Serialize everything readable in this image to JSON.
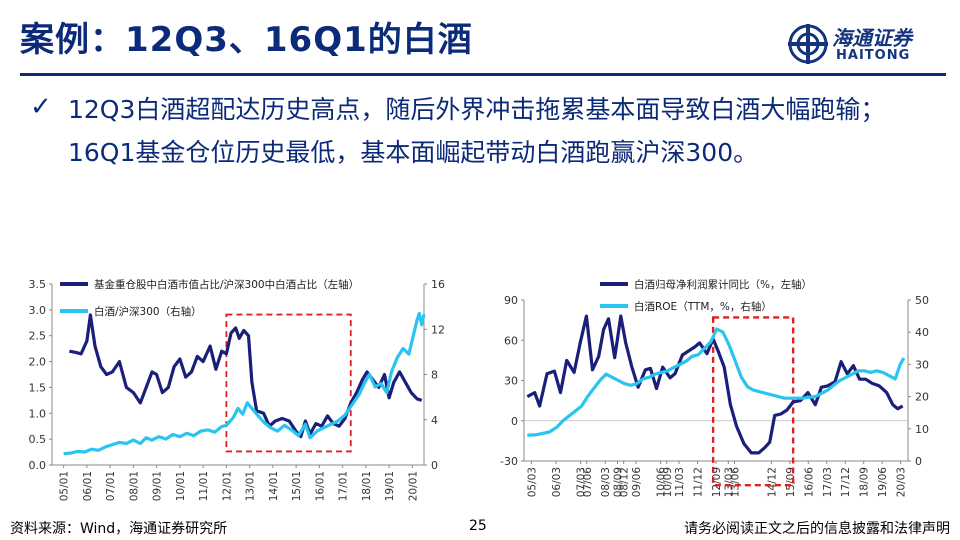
{
  "header": {
    "title": "案例：12Q3、16Q1的白酒",
    "logo_cn": "海通证券",
    "logo_en": "HAITONG"
  },
  "bullet": {
    "text": "12Q3白酒超配达历史高点，随后外界冲击拖累基本面导致白酒大幅跑输；16Q1基金仓位历史最低，基本面崛起带动白酒跑赢沪深300。"
  },
  "footer": {
    "source": "资料来源：Wind，海通证券研究所",
    "page": "25",
    "disclaimer": "请务必阅读正文之后的信息披露和法律声明"
  },
  "colors": {
    "brand": "#0c2a7a",
    "navy": "#1a1f7a",
    "cyan": "#29c4f0",
    "highlight": "#e02020"
  },
  "chart_data": [
    {
      "type": "line",
      "x_ticks": [
        "05/01",
        "06/01",
        "07/01",
        "08/01",
        "09/01",
        "10/01",
        "11/01",
        "12/01",
        "13/01",
        "14/01",
        "15/01",
        "16/01",
        "17/01",
        "18/01",
        "19/01",
        "20/01"
      ],
      "ylim_left": [
        0,
        3.5
      ],
      "yticks_left": [
        "0.0",
        "0.5",
        "1.0",
        "1.5",
        "2.0",
        "2.5",
        "3.0",
        "3.5"
      ],
      "ylim_right": [
        0,
        16
      ],
      "yticks_right": [
        "0",
        "4",
        "8",
        "12",
        "16"
      ],
      "highlight": {
        "x": [
          2012.0,
          2017.35
        ],
        "y_right": [
          1.2,
          13.3
        ]
      },
      "series": [
        {
          "name": "基金重仓股中白酒市值占比/沪深300中白酒占比（左轴）",
          "axis": "left",
          "color": "#1a1f7a",
          "points": [
            [
              2005.25,
              2.2
            ],
            [
              2005.5,
              2.18
            ],
            [
              2005.75,
              2.15
            ],
            [
              2006.0,
              2.4
            ],
            [
              2006.15,
              2.9
            ],
            [
              2006.35,
              2.3
            ],
            [
              2006.6,
              1.9
            ],
            [
              2006.85,
              1.75
            ],
            [
              2007.1,
              1.8
            ],
            [
              2007.4,
              2.0
            ],
            [
              2007.7,
              1.5
            ],
            [
              2008.0,
              1.4
            ],
            [
              2008.3,
              1.2
            ],
            [
              2008.55,
              1.5
            ],
            [
              2008.8,
              1.8
            ],
            [
              2009.0,
              1.75
            ],
            [
              2009.25,
              1.4
            ],
            [
              2009.5,
              1.5
            ],
            [
              2009.75,
              1.9
            ],
            [
              2010.0,
              2.05
            ],
            [
              2010.25,
              1.7
            ],
            [
              2010.5,
              1.8
            ],
            [
              2010.75,
              2.1
            ],
            [
              2011.0,
              2.0
            ],
            [
              2011.3,
              2.3
            ],
            [
              2011.55,
              1.85
            ],
            [
              2011.8,
              2.2
            ],
            [
              2012.0,
              2.15
            ],
            [
              2012.2,
              2.55
            ],
            [
              2012.4,
              2.65
            ],
            [
              2012.55,
              2.45
            ],
            [
              2012.75,
              2.6
            ],
            [
              2012.95,
              2.5
            ],
            [
              2013.1,
              1.6
            ],
            [
              2013.3,
              1.05
            ],
            [
              2013.6,
              1.0
            ],
            [
              2013.85,
              0.75
            ],
            [
              2014.1,
              0.85
            ],
            [
              2014.4,
              0.9
            ],
            [
              2014.7,
              0.85
            ],
            [
              2015.0,
              0.65
            ],
            [
              2015.2,
              0.55
            ],
            [
              2015.4,
              0.85
            ],
            [
              2015.6,
              0.6
            ],
            [
              2015.85,
              0.8
            ],
            [
              2016.1,
              0.75
            ],
            [
              2016.35,
              0.95
            ],
            [
              2016.6,
              0.8
            ],
            [
              2016.85,
              0.75
            ],
            [
              2017.1,
              0.9
            ],
            [
              2017.35,
              1.2
            ],
            [
              2017.6,
              1.4
            ],
            [
              2017.85,
              1.65
            ],
            [
              2018.05,
              1.8
            ],
            [
              2018.3,
              1.65
            ],
            [
              2018.55,
              1.5
            ],
            [
              2018.8,
              1.75
            ],
            [
              2019.0,
              1.3
            ],
            [
              2019.2,
              1.6
            ],
            [
              2019.45,
              1.8
            ],
            [
              2019.7,
              1.6
            ],
            [
              2019.95,
              1.4
            ],
            [
              2020.2,
              1.28
            ],
            [
              2020.4,
              1.25
            ]
          ]
        },
        {
          "name": "白酒/沪深300（右轴）",
          "axis": "right",
          "color": "#29c4f0",
          "points": [
            [
              2005.0,
              1.0
            ],
            [
              2005.3,
              1.05
            ],
            [
              2005.6,
              1.2
            ],
            [
              2005.9,
              1.15
            ],
            [
              2006.2,
              1.4
            ],
            [
              2006.5,
              1.3
            ],
            [
              2006.8,
              1.6
            ],
            [
              2007.1,
              1.8
            ],
            [
              2007.4,
              2.0
            ],
            [
              2007.7,
              1.9
            ],
            [
              2008.0,
              2.2
            ],
            [
              2008.3,
              1.9
            ],
            [
              2008.55,
              2.4
            ],
            [
              2008.8,
              2.2
            ],
            [
              2009.1,
              2.5
            ],
            [
              2009.4,
              2.3
            ],
            [
              2009.7,
              2.7
            ],
            [
              2010.0,
              2.5
            ],
            [
              2010.3,
              2.8
            ],
            [
              2010.6,
              2.6
            ],
            [
              2010.9,
              3.0
            ],
            [
              2011.2,
              3.1
            ],
            [
              2011.5,
              2.9
            ],
            [
              2011.8,
              3.4
            ],
            [
              2012.0,
              3.5
            ],
            [
              2012.3,
              4.2
            ],
            [
              2012.5,
              5.0
            ],
            [
              2012.7,
              4.5
            ],
            [
              2012.9,
              5.5
            ],
            [
              2013.1,
              5.0
            ],
            [
              2013.3,
              4.5
            ],
            [
              2013.6,
              3.8
            ],
            [
              2013.9,
              3.3
            ],
            [
              2014.2,
              3.0
            ],
            [
              2014.5,
              3.5
            ],
            [
              2014.8,
              3.1
            ],
            [
              2015.1,
              2.6
            ],
            [
              2015.4,
              3.6
            ],
            [
              2015.6,
              2.4
            ],
            [
              2015.9,
              3.0
            ],
            [
              2016.2,
              3.3
            ],
            [
              2016.5,
              3.6
            ],
            [
              2016.8,
              3.9
            ],
            [
              2017.1,
              4.4
            ],
            [
              2017.4,
              5.3
            ],
            [
              2017.7,
              6.2
            ],
            [
              2017.95,
              7.3
            ],
            [
              2018.15,
              8.0
            ],
            [
              2018.4,
              6.9
            ],
            [
              2018.65,
              7.2
            ],
            [
              2018.9,
              6.4
            ],
            [
              2019.1,
              8.2
            ],
            [
              2019.35,
              9.5
            ],
            [
              2019.6,
              10.3
            ],
            [
              2019.85,
              9.8
            ],
            [
              2020.05,
              11.5
            ],
            [
              2020.2,
              12.8
            ],
            [
              2020.3,
              13.4
            ],
            [
              2020.4,
              12.4
            ],
            [
              2020.5,
              13.3
            ]
          ]
        }
      ]
    },
    {
      "type": "line",
      "x_ticks": [
        "05/03",
        "06/03",
        "07/03",
        "07/06",
        "08/09",
        "08/03",
        "08/12",
        "09/06",
        "10/06",
        "10/09",
        "11/03",
        "11/12",
        "12/09",
        "13/03",
        "13/06",
        "14/12",
        "15/09",
        "16/06",
        "17/03",
        "17/12",
        "18/09",
        "19/06",
        "20/03"
      ],
      "ylim_left": [
        -30,
        90
      ],
      "yticks_left": [
        "-30",
        "0",
        "30",
        "60",
        "90"
      ],
      "ylim_right": [
        0,
        50
      ],
      "yticks_right": [
        "0",
        "10",
        "20",
        "30",
        "40",
        "50"
      ],
      "highlight": {
        "x": [
          2012.55,
          2015.8
        ],
        "y_left": [
          -48,
          77
        ]
      },
      "series": [
        {
          "name": "白酒归母净利润累计同比（%，左轴）",
          "axis": "left",
          "color": "#1a1f7a",
          "points": [
            [
              2005.0,
              18
            ],
            [
              2005.3,
              21
            ],
            [
              2005.5,
              11
            ],
            [
              2005.8,
              35
            ],
            [
              2006.1,
              37
            ],
            [
              2006.35,
              21
            ],
            [
              2006.6,
              45
            ],
            [
              2006.9,
              36
            ],
            [
              2007.15,
              58
            ],
            [
              2007.4,
              78
            ],
            [
              2007.65,
              38
            ],
            [
              2007.9,
              48
            ],
            [
              2008.1,
              68
            ],
            [
              2008.3,
              76
            ],
            [
              2008.55,
              47
            ],
            [
              2008.8,
              78
            ],
            [
              2009.0,
              58
            ],
            [
              2009.25,
              40
            ],
            [
              2009.5,
              25
            ],
            [
              2009.8,
              38
            ],
            [
              2010.0,
              39
            ],
            [
              2010.25,
              24
            ],
            [
              2010.5,
              40
            ],
            [
              2010.8,
              32
            ],
            [
              2011.0,
              35
            ],
            [
              2011.3,
              49
            ],
            [
              2011.55,
              52
            ],
            [
              2011.8,
              55
            ],
            [
              2012.0,
              58
            ],
            [
              2012.3,
              50
            ],
            [
              2012.55,
              61
            ],
            [
              2012.75,
              52
            ],
            [
              2013.0,
              40
            ],
            [
              2013.25,
              12
            ],
            [
              2013.5,
              -4
            ],
            [
              2013.8,
              -17
            ],
            [
              2014.1,
              -24
            ],
            [
              2014.4,
              -24
            ],
            [
              2014.65,
              -20
            ],
            [
              2014.85,
              -16
            ],
            [
              2015.05,
              4
            ],
            [
              2015.3,
              5
            ],
            [
              2015.55,
              8
            ],
            [
              2015.8,
              14
            ],
            [
              2016.1,
              15
            ],
            [
              2016.4,
              21
            ],
            [
              2016.7,
              12
            ],
            [
              2016.95,
              25
            ],
            [
              2017.2,
              26
            ],
            [
              2017.5,
              29
            ],
            [
              2017.75,
              44
            ],
            [
              2018.0,
              35
            ],
            [
              2018.25,
              41
            ],
            [
              2018.5,
              31
            ],
            [
              2018.75,
              31
            ],
            [
              2019.0,
              28
            ],
            [
              2019.3,
              26
            ],
            [
              2019.6,
              21
            ],
            [
              2019.85,
              12
            ],
            [
              2020.05,
              9
            ],
            [
              2020.25,
              11
            ]
          ]
        },
        {
          "name": "白酒ROE（TTM，%，右轴）",
          "axis": "right",
          "color": "#29c4f0",
          "points": [
            [
              2005.0,
              8
            ],
            [
              2005.3,
              8.1
            ],
            [
              2005.6,
              8.5
            ],
            [
              2005.9,
              9
            ],
            [
              2006.2,
              10.5
            ],
            [
              2006.45,
              12.5
            ],
            [
              2006.7,
              14
            ],
            [
              2006.95,
              15.5
            ],
            [
              2007.2,
              17
            ],
            [
              2007.45,
              20
            ],
            [
              2007.7,
              22.5
            ],
            [
              2007.95,
              25
            ],
            [
              2008.2,
              27
            ],
            [
              2008.45,
              26
            ],
            [
              2008.7,
              25
            ],
            [
              2008.95,
              24
            ],
            [
              2009.2,
              23.5
            ],
            [
              2009.45,
              24
            ],
            [
              2009.7,
              25.5
            ],
            [
              2009.95,
              26
            ],
            [
              2010.2,
              27
            ],
            [
              2010.45,
              27.5
            ],
            [
              2010.7,
              28
            ],
            [
              2010.95,
              29
            ],
            [
              2011.2,
              30
            ],
            [
              2011.45,
              31
            ],
            [
              2011.7,
              32.5
            ],
            [
              2011.95,
              33
            ],
            [
              2012.2,
              35
            ],
            [
              2012.45,
              37
            ],
            [
              2012.7,
              41
            ],
            [
              2012.95,
              40
            ],
            [
              2013.2,
              36
            ],
            [
              2013.45,
              31
            ],
            [
              2013.7,
              26
            ],
            [
              2013.95,
              23
            ],
            [
              2014.2,
              22
            ],
            [
              2014.45,
              21.5
            ],
            [
              2014.7,
              21
            ],
            [
              2014.95,
              20.5
            ],
            [
              2015.2,
              20
            ],
            [
              2015.45,
              19.5
            ],
            [
              2015.7,
              19.5
            ],
            [
              2015.95,
              19.5
            ],
            [
              2016.2,
              19.5
            ],
            [
              2016.45,
              19.8
            ],
            [
              2016.7,
              20
            ],
            [
              2016.95,
              21
            ],
            [
              2017.2,
              22
            ],
            [
              2017.45,
              23.5
            ],
            [
              2017.7,
              25
            ],
            [
              2017.95,
              26
            ],
            [
              2018.2,
              27
            ],
            [
              2018.45,
              28
            ],
            [
              2018.7,
              28
            ],
            [
              2018.95,
              27.5
            ],
            [
              2019.2,
              28
            ],
            [
              2019.45,
              27.5
            ],
            [
              2019.7,
              26.5
            ],
            [
              2019.95,
              25.5
            ],
            [
              2020.15,
              30
            ],
            [
              2020.3,
              32
            ]
          ]
        }
      ]
    }
  ]
}
